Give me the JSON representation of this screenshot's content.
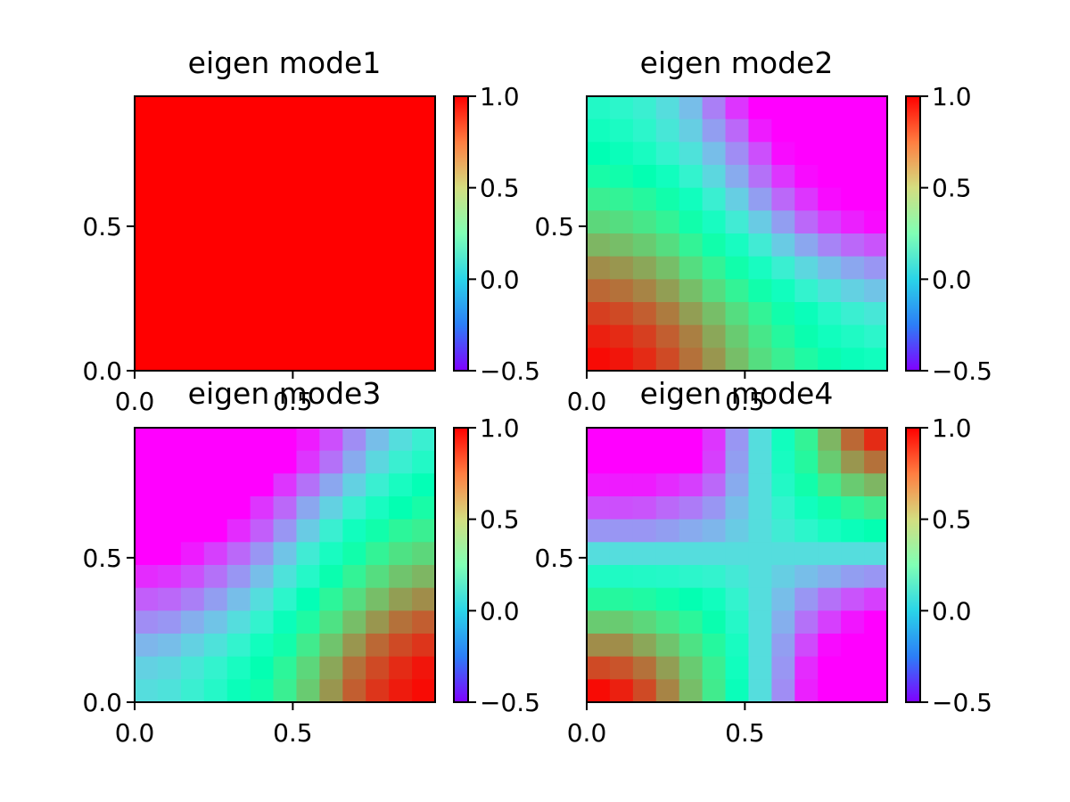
{
  "chart_data": [
    {
      "type": "heatmap",
      "title": "eigen mode1",
      "x_range": [
        0,
        0.95
      ],
      "y_range": [
        0,
        0.95
      ],
      "x_ticks": [
        "0.0",
        "0.5"
      ],
      "y_ticks": [
        "0.0",
        "0.5"
      ],
      "colorbar": {
        "range": [
          -0.5,
          1.0
        ],
        "ticks": [
          "−0.5",
          "0.0",
          "0.5",
          "1.0"
        ],
        "colormap": "rainbow"
      },
      "grid_size": [
        13,
        12
      ],
      "values": [
        [
          1,
          1,
          1,
          1,
          1,
          1,
          1,
          1,
          1,
          1,
          1,
          1,
          1
        ],
        [
          1,
          1,
          1,
          1,
          1,
          1,
          1,
          1,
          1,
          1,
          1,
          1,
          1
        ],
        [
          1,
          1,
          1,
          1,
          1,
          1,
          1,
          1,
          1,
          1,
          1,
          1,
          1
        ],
        [
          1,
          1,
          1,
          1,
          1,
          1,
          1,
          1,
          1,
          1,
          1,
          1,
          1
        ],
        [
          1,
          1,
          1,
          1,
          1,
          1,
          1,
          1,
          1,
          1,
          1,
          1,
          1
        ],
        [
          1,
          1,
          1,
          1,
          1,
          1,
          1,
          1,
          1,
          1,
          1,
          1,
          1
        ],
        [
          1,
          1,
          1,
          1,
          1,
          1,
          1,
          1,
          1,
          1,
          1,
          1,
          1
        ],
        [
          1,
          1,
          1,
          1,
          1,
          1,
          1,
          1,
          1,
          1,
          1,
          1,
          1
        ],
        [
          1,
          1,
          1,
          1,
          1,
          1,
          1,
          1,
          1,
          1,
          1,
          1,
          1
        ],
        [
          1,
          1,
          1,
          1,
          1,
          1,
          1,
          1,
          1,
          1,
          1,
          1,
          1
        ],
        [
          1,
          1,
          1,
          1,
          1,
          1,
          1,
          1,
          1,
          1,
          1,
          1,
          1
        ],
        [
          1,
          1,
          1,
          1,
          1,
          1,
          1,
          1,
          1,
          1,
          1,
          1,
          1
        ]
      ]
    },
    {
      "type": "heatmap",
      "title": "eigen mode2",
      "x_range": [
        0,
        0.95
      ],
      "y_range": [
        0,
        0.95
      ],
      "x_ticks": [
        "0.0",
        "0.5"
      ],
      "y_ticks": [
        "0.5"
      ],
      "colorbar": {
        "range": [
          -0.5,
          1.0
        ],
        "ticks": [
          "−0.5",
          "0.0",
          "0.5",
          "1.0"
        ],
        "colormap": "rainbow"
      },
      "grid_size": [
        13,
        12
      ],
      "values": [
        [
          0.15,
          0.12,
          0.08,
          0.0,
          -0.1,
          -0.25,
          -0.4,
          -0.5,
          -0.5,
          -0.5,
          -0.5,
          -0.5,
          -0.5
        ],
        [
          0.2,
          0.17,
          0.12,
          0.04,
          -0.05,
          -0.18,
          -0.3,
          -0.45,
          -0.5,
          -0.5,
          -0.5,
          -0.5,
          -0.5
        ],
        [
          0.25,
          0.22,
          0.18,
          0.1,
          0.02,
          -0.1,
          -0.22,
          -0.35,
          -0.48,
          -0.5,
          -0.5,
          -0.5,
          -0.5
        ],
        [
          0.32,
          0.3,
          0.26,
          0.2,
          0.1,
          -0.02,
          -0.15,
          -0.28,
          -0.4,
          -0.48,
          -0.5,
          -0.5,
          -0.5
        ],
        [
          0.42,
          0.4,
          0.36,
          0.3,
          0.2,
          0.08,
          -0.05,
          -0.18,
          -0.3,
          -0.4,
          -0.48,
          -0.5,
          -0.5
        ],
        [
          0.52,
          0.5,
          0.46,
          0.4,
          0.3,
          0.18,
          0.06,
          -0.06,
          -0.18,
          -0.3,
          -0.38,
          -0.44,
          -0.48
        ],
        [
          0.62,
          0.6,
          0.56,
          0.5,
          0.4,
          0.3,
          0.18,
          0.06,
          -0.06,
          -0.16,
          -0.24,
          -0.3,
          -0.34
        ],
        [
          0.72,
          0.7,
          0.66,
          0.6,
          0.5,
          0.4,
          0.3,
          0.18,
          0.08,
          -0.02,
          -0.1,
          -0.16,
          -0.2
        ],
        [
          0.8,
          0.78,
          0.74,
          0.68,
          0.6,
          0.5,
          0.4,
          0.3,
          0.2,
          0.1,
          0.02,
          -0.04,
          -0.08
        ],
        [
          0.88,
          0.86,
          0.82,
          0.76,
          0.68,
          0.6,
          0.5,
          0.4,
          0.3,
          0.22,
          0.14,
          0.08,
          0.04
        ],
        [
          0.94,
          0.92,
          0.88,
          0.82,
          0.75,
          0.66,
          0.56,
          0.46,
          0.36,
          0.28,
          0.2,
          0.16,
          0.12
        ],
        [
          0.98,
          0.96,
          0.92,
          0.86,
          0.78,
          0.7,
          0.6,
          0.5,
          0.42,
          0.34,
          0.28,
          0.22,
          0.2
        ]
      ]
    },
    {
      "type": "heatmap",
      "title": "eigen mode3",
      "x_range": [
        0,
        0.95
      ],
      "y_range": [
        0,
        0.95
      ],
      "x_ticks": [
        "0.0",
        "0.5"
      ],
      "y_ticks": [
        "0.0",
        "0.5"
      ],
      "colorbar": {
        "range": [
          -0.5,
          1.0
        ],
        "ticks": [
          "−0.5",
          "0.0",
          "0.5",
          "1.0"
        ],
        "colormap": "rainbow"
      },
      "grid_size": [
        13,
        12
      ],
      "values": [
        [
          -0.5,
          -0.5,
          -0.5,
          -0.5,
          -0.5,
          -0.5,
          -0.5,
          -0.45,
          -0.35,
          -0.22,
          -0.1,
          0.0,
          0.08
        ],
        [
          -0.5,
          -0.5,
          -0.5,
          -0.5,
          -0.5,
          -0.5,
          -0.5,
          -0.4,
          -0.28,
          -0.15,
          -0.02,
          0.08,
          0.15
        ],
        [
          -0.5,
          -0.5,
          -0.5,
          -0.5,
          -0.5,
          -0.5,
          -0.4,
          -0.28,
          -0.16,
          -0.04,
          0.08,
          0.18,
          0.24
        ],
        [
          -0.5,
          -0.5,
          -0.5,
          -0.5,
          -0.5,
          -0.4,
          -0.3,
          -0.16,
          -0.04,
          0.08,
          0.18,
          0.26,
          0.32
        ],
        [
          -0.5,
          -0.5,
          -0.5,
          -0.5,
          -0.42,
          -0.32,
          -0.2,
          -0.06,
          0.08,
          0.2,
          0.3,
          0.38,
          0.42
        ],
        [
          -0.5,
          -0.5,
          -0.45,
          -0.38,
          -0.3,
          -0.2,
          -0.08,
          0.06,
          0.18,
          0.3,
          0.4,
          0.48,
          0.52
        ],
        [
          -0.42,
          -0.4,
          -0.35,
          -0.28,
          -0.2,
          -0.1,
          0.02,
          0.14,
          0.28,
          0.4,
          0.5,
          0.58,
          0.62
        ],
        [
          -0.32,
          -0.3,
          -0.25,
          -0.18,
          -0.1,
          0.0,
          0.12,
          0.24,
          0.38,
          0.5,
          0.6,
          0.68,
          0.72
        ],
        [
          -0.22,
          -0.2,
          -0.14,
          -0.08,
          0.0,
          0.1,
          0.22,
          0.34,
          0.48,
          0.6,
          0.7,
          0.78,
          0.82
        ],
        [
          -0.12,
          -0.1,
          -0.04,
          0.02,
          0.1,
          0.2,
          0.3,
          0.44,
          0.58,
          0.7,
          0.8,
          0.86,
          0.9
        ],
        [
          -0.04,
          -0.02,
          0.04,
          0.1,
          0.18,
          0.26,
          0.38,
          0.52,
          0.66,
          0.78,
          0.86,
          0.92,
          0.96
        ],
        [
          0.0,
          0.02,
          0.08,
          0.14,
          0.22,
          0.3,
          0.42,
          0.56,
          0.7,
          0.82,
          0.9,
          0.95,
          0.98
        ]
      ]
    },
    {
      "type": "heatmap",
      "title": "eigen mode4",
      "x_range": [
        0,
        0.95
      ],
      "y_range": [
        0,
        0.95
      ],
      "x_ticks": [
        "0.0",
        "0.5"
      ],
      "y_ticks": [
        "0.5"
      ],
      "colorbar": {
        "range": [
          -0.5,
          1.0
        ],
        "ticks": [
          "−0.5",
          "0.0",
          "0.5",
          "1.0"
        ],
        "colormap": "rainbow"
      },
      "grid_size": [
        13,
        12
      ],
      "values": [
        [
          -0.5,
          -0.5,
          -0.5,
          -0.5,
          -0.5,
          -0.4,
          -0.2,
          0.0,
          0.2,
          0.4,
          0.62,
          0.8,
          0.92
        ],
        [
          -0.5,
          -0.5,
          -0.5,
          -0.5,
          -0.5,
          -0.38,
          -0.18,
          0.0,
          0.18,
          0.36,
          0.56,
          0.7,
          0.78
        ],
        [
          -0.45,
          -0.45,
          -0.45,
          -0.42,
          -0.38,
          -0.3,
          -0.15,
          0.0,
          0.15,
          0.3,
          0.44,
          0.56,
          0.62
        ],
        [
          -0.35,
          -0.35,
          -0.34,
          -0.3,
          -0.26,
          -0.2,
          -0.1,
          0.0,
          0.1,
          0.2,
          0.3,
          0.38,
          0.44
        ],
        [
          -0.2,
          -0.2,
          -0.2,
          -0.18,
          -0.15,
          -0.12,
          -0.06,
          0.0,
          0.06,
          0.12,
          0.18,
          0.22,
          0.26
        ],
        [
          0.0,
          0.0,
          0.0,
          0.0,
          0.0,
          0.0,
          0.0,
          0.0,
          0.0,
          0.0,
          0.0,
          0.0,
          0.0
        ],
        [
          0.16,
          0.16,
          0.15,
          0.14,
          0.12,
          0.1,
          0.05,
          0.0,
          -0.05,
          -0.1,
          -0.14,
          -0.18,
          -0.2
        ],
        [
          0.36,
          0.36,
          0.34,
          0.3,
          0.26,
          0.2,
          0.1,
          0.0,
          -0.1,
          -0.2,
          -0.28,
          -0.34,
          -0.38
        ],
        [
          0.56,
          0.56,
          0.52,
          0.46,
          0.38,
          0.28,
          0.14,
          0.0,
          -0.14,
          -0.28,
          -0.38,
          -0.46,
          -0.5
        ],
        [
          0.72,
          0.72,
          0.66,
          0.58,
          0.48,
          0.36,
          0.18,
          0.0,
          -0.18,
          -0.36,
          -0.48,
          -0.5,
          -0.5
        ],
        [
          0.86,
          0.84,
          0.78,
          0.68,
          0.56,
          0.42,
          0.2,
          0.0,
          -0.2,
          -0.42,
          -0.5,
          -0.5,
          -0.5
        ],
        [
          0.98,
          0.94,
          0.86,
          0.74,
          0.6,
          0.44,
          0.22,
          0.0,
          -0.22,
          -0.44,
          -0.5,
          -0.5,
          -0.5
        ]
      ]
    }
  ]
}
